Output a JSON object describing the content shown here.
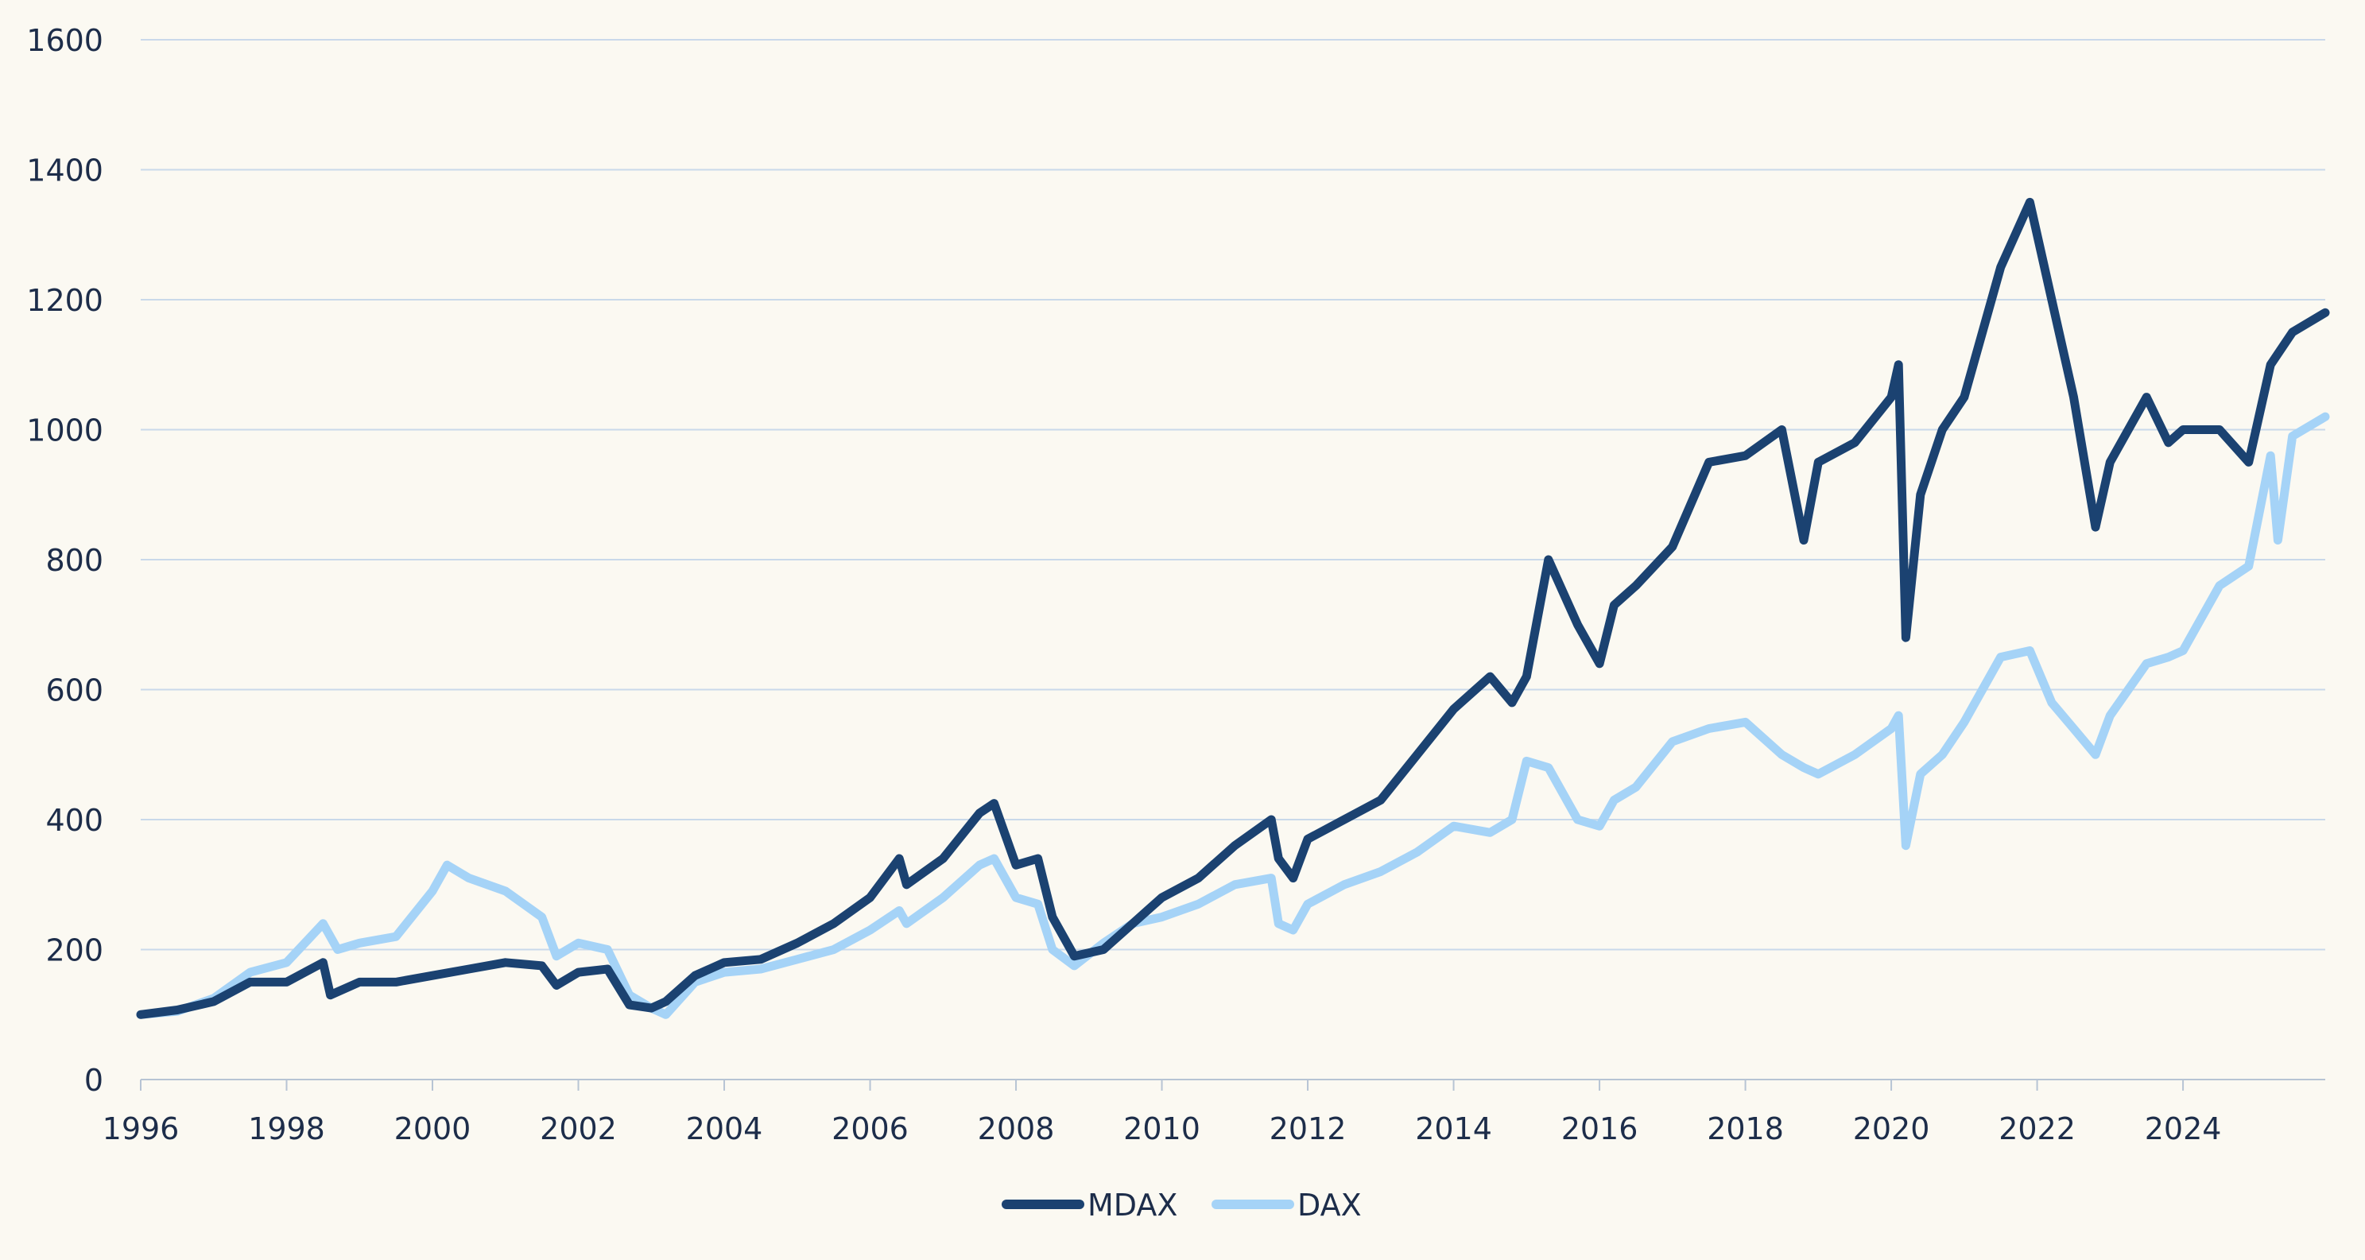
{
  "chart_data": {
    "type": "line",
    "title": "",
    "xlabel": "",
    "ylabel": "",
    "xlim": [
      1996,
      2025.95
    ],
    "ylim": [
      0,
      1600
    ],
    "x_ticks": [
      1996,
      1998,
      2000,
      2002,
      2004,
      2006,
      2008,
      2010,
      2012,
      2014,
      2016,
      2018,
      2020,
      2022,
      2024
    ],
    "x_tick_labels": [
      "1996",
      "1998",
      "2000",
      "2002",
      "2004",
      "2006",
      "2008",
      "2010",
      "2012",
      "2014",
      "2016",
      "2018",
      "2020",
      "2022",
      "2024"
    ],
    "y_ticks": [
      0,
      200,
      400,
      600,
      800,
      1000,
      1200,
      1400,
      1600
    ],
    "y_tick_labels": [
      "0",
      "200",
      "400",
      "600",
      "800",
      "1000",
      "1200",
      "1400",
      "1600"
    ],
    "grid": "horizontal",
    "legend_position": "bottom-center",
    "series": [
      {
        "name": "MDAX",
        "color": "#1b4271",
        "x": [
          1996.0,
          1996.5,
          1997.0,
          1997.5,
          1998.0,
          1998.5,
          1998.6,
          1999.0,
          1999.5,
          2000.0,
          2000.5,
          2001.0,
          2001.5,
          2001.7,
          2002.0,
          2002.4,
          2002.7,
          2003.0,
          2003.2,
          2003.6,
          2004.0,
          2004.5,
          2005.0,
          2005.5,
          2006.0,
          2006.4,
          2006.5,
          2007.0,
          2007.5,
          2007.7,
          2008.0,
          2008.3,
          2008.5,
          2008.8,
          2009.2,
          2009.6,
          2010.0,
          2010.5,
          2011.0,
          2011.5,
          2011.6,
          2011.8,
          2012.0,
          2012.5,
          2013.0,
          2013.5,
          2014.0,
          2014.5,
          2014.8,
          2015.0,
          2015.3,
          2015.7,
          2016.0,
          2016.2,
          2016.5,
          2017.0,
          2017.5,
          2018.0,
          2018.5,
          2018.8,
          2019.0,
          2019.5,
          2020.0,
          2020.1,
          2020.2,
          2020.4,
          2020.7,
          2021.0,
          2021.5,
          2021.9,
          2022.2,
          2022.5,
          2022.8,
          2023.0,
          2023.5,
          2023.8,
          2024.0,
          2024.5,
          2024.9,
          2025.2,
          2025.5,
          2025.95
        ],
        "values": [
          100,
          107,
          120,
          150,
          150,
          180,
          130,
          150,
          150,
          160,
          170,
          180,
          175,
          145,
          165,
          170,
          115,
          110,
          120,
          160,
          180,
          185,
          210,
          240,
          280,
          340,
          300,
          340,
          410,
          425,
          330,
          340,
          250,
          190,
          200,
          240,
          280,
          310,
          360,
          400,
          340,
          310,
          370,
          400,
          430,
          500,
          570,
          620,
          580,
          620,
          800,
          700,
          640,
          730,
          760,
          820,
          950,
          960,
          1000,
          830,
          950,
          980,
          1050,
          1100,
          680,
          900,
          1000,
          1050,
          1250,
          1350,
          1200,
          1050,
          850,
          950,
          1050,
          980,
          1000,
          1000,
          950,
          1100,
          1150,
          1180
        ]
      },
      {
        "name": "DAX",
        "color": "#a5d3f7",
        "x": [
          1996.0,
          1996.5,
          1997.0,
          1997.5,
          1998.0,
          1998.5,
          1998.7,
          1999.0,
          1999.5,
          2000.0,
          2000.2,
          2000.5,
          2001.0,
          2001.5,
          2001.7,
          2002.0,
          2002.4,
          2002.7,
          2003.0,
          2003.2,
          2003.6,
          2004.0,
          2004.5,
          2005.0,
          2005.5,
          2006.0,
          2006.4,
          2006.5,
          2007.0,
          2007.5,
          2007.7,
          2008.0,
          2008.3,
          2008.5,
          2008.8,
          2009.2,
          2009.6,
          2010.0,
          2010.5,
          2011.0,
          2011.5,
          2011.6,
          2011.8,
          2012.0,
          2012.5,
          2013.0,
          2013.5,
          2014.0,
          2014.5,
          2014.8,
          2015.0,
          2015.3,
          2015.7,
          2016.0,
          2016.2,
          2016.5,
          2017.0,
          2017.5,
          2018.0,
          2018.5,
          2018.8,
          2019.0,
          2019.5,
          2020.0,
          2020.1,
          2020.2,
          2020.4,
          2020.7,
          2021.0,
          2021.5,
          2021.9,
          2022.2,
          2022.5,
          2022.8,
          2023.0,
          2023.5,
          2023.8,
          2024.0,
          2024.5,
          2024.9,
          2025.2,
          2025.3,
          2025.5,
          2025.95
        ],
        "values": [
          100,
          105,
          125,
          165,
          180,
          240,
          200,
          210,
          220,
          290,
          330,
          310,
          290,
          250,
          190,
          210,
          200,
          130,
          110,
          100,
          150,
          165,
          170,
          185,
          200,
          230,
          260,
          240,
          280,
          330,
          340,
          280,
          270,
          200,
          175,
          210,
          240,
          250,
          270,
          300,
          310,
          240,
          230,
          270,
          300,
          320,
          350,
          390,
          380,
          400,
          490,
          480,
          400,
          390,
          430,
          450,
          520,
          540,
          550,
          500,
          480,
          470,
          500,
          540,
          560,
          360,
          470,
          500,
          550,
          650,
          660,
          580,
          540,
          500,
          560,
          640,
          650,
          660,
          760,
          790,
          960,
          830,
          990,
          1020
        ]
      }
    ]
  }
}
